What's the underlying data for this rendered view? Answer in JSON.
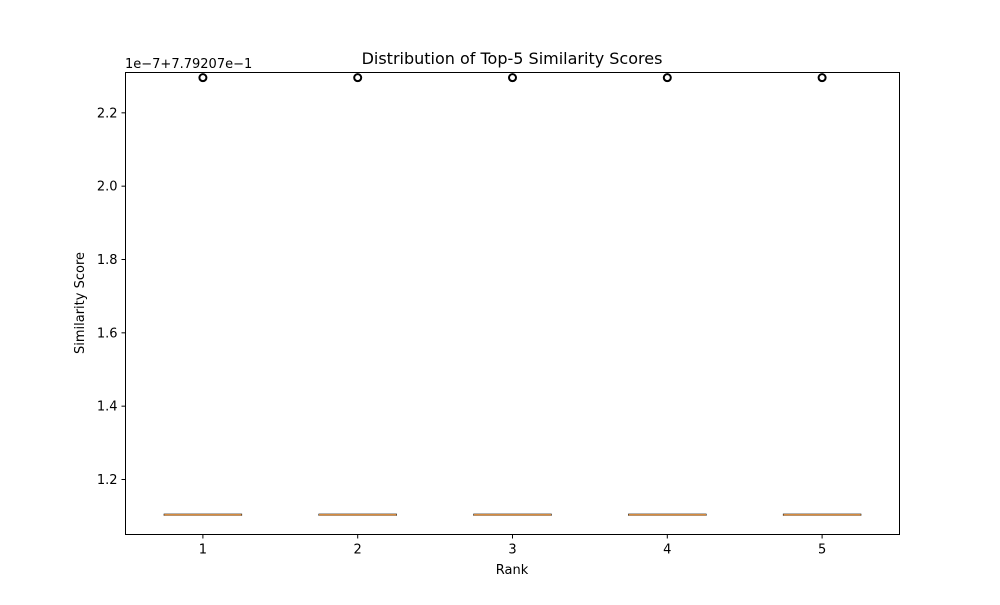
{
  "chart_data": {
    "type": "box",
    "title": "Distribution of Top-5 Similarity Scores",
    "xlabel": "Rank",
    "ylabel": "Similarity Score",
    "offset_label": "1e−7+7.79207e−1",
    "categories": [
      "1",
      "2",
      "3",
      "4",
      "5"
    ],
    "ylim": [
      1.05,
      2.31
    ],
    "yticks": [
      1.2,
      1.4,
      1.6,
      1.8,
      2.0,
      2.2
    ],
    "ytick_labels": [
      "1.2",
      "1.4",
      "1.6",
      "1.8",
      "2.0",
      "2.2"
    ],
    "grid": false,
    "boxes": [
      {
        "category": "1",
        "q1": 1.104,
        "median": 1.104,
        "q3": 1.104,
        "whisker_low": 1.104,
        "whisker_high": 1.104,
        "outliers": [
          2.296
        ]
      },
      {
        "category": "2",
        "q1": 1.104,
        "median": 1.104,
        "q3": 1.104,
        "whisker_low": 1.104,
        "whisker_high": 1.104,
        "outliers": [
          2.296
        ]
      },
      {
        "category": "3",
        "q1": 1.104,
        "median": 1.104,
        "q3": 1.104,
        "whisker_low": 1.104,
        "whisker_high": 1.104,
        "outliers": [
          2.296
        ]
      },
      {
        "category": "4",
        "q1": 1.104,
        "median": 1.104,
        "q3": 1.104,
        "whisker_low": 1.104,
        "whisker_high": 1.104,
        "outliers": [
          2.296
        ]
      },
      {
        "category": "5",
        "q1": 1.104,
        "median": 1.104,
        "q3": 1.104,
        "whisker_low": 1.104,
        "whisker_high": 1.104,
        "outliers": [
          2.296
        ]
      }
    ],
    "colors": {
      "box": "#000000",
      "median": "#d68b3f",
      "outlier": "#000000"
    }
  }
}
